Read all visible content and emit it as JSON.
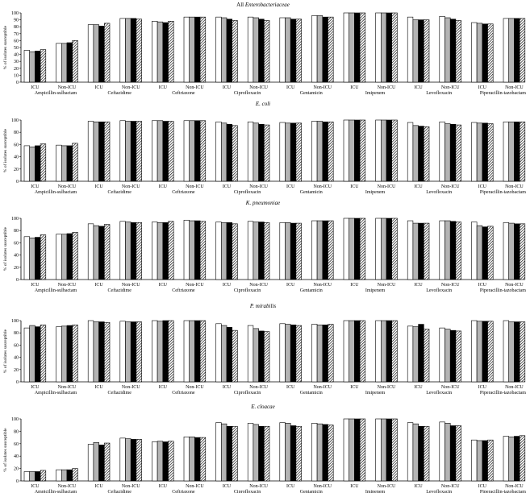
{
  "chart_data": [
    {
      "type": "bar",
      "title": "All Enterobacteriaceae",
      "title_italic_part": "Enterobacteriaceae",
      "ylabel": "% of isolates susceptible",
      "ylim": [
        0,
        100
      ],
      "yticks": [
        0,
        10,
        20,
        30,
        40,
        50,
        60,
        70,
        80,
        90,
        100
      ],
      "drugs": [
        "Ampicillin-sulbactam",
        "Ceftazidime",
        "Ceftriaxone",
        "Ciprofloxacin",
        "Gentamicin",
        "Imipenem",
        "Levofloxacin",
        "Piperacillin-tazobactam"
      ],
      "units": [
        "ICU",
        "Non-ICU"
      ],
      "series_patterns": [
        "white",
        "gray",
        "black",
        "hatched"
      ],
      "values": [
        [
          [
            46,
            44,
            45,
            47
          ],
          [
            56,
            56,
            57,
            60
          ]
        ],
        [
          [
            83,
            83,
            81,
            85
          ],
          [
            92,
            92,
            92,
            91
          ]
        ],
        [
          [
            88,
            87,
            86,
            88
          ],
          [
            94,
            94,
            94,
            94
          ]
        ],
        [
          [
            94,
            93,
            91,
            89
          ],
          [
            94,
            93,
            91,
            89
          ]
        ],
        [
          [
            93,
            93,
            91,
            91
          ],
          [
            96,
            96,
            94,
            94
          ]
        ],
        [
          [
            100,
            100,
            100,
            100
          ],
          [
            100,
            100,
            100,
            100
          ]
        ],
        [
          [
            94,
            90,
            90,
            90
          ],
          [
            95,
            93,
            91,
            89
          ]
        ],
        [
          [
            86,
            85,
            84,
            84
          ],
          [
            92,
            92,
            92,
            92
          ]
        ]
      ]
    },
    {
      "type": "bar",
      "title": "E. coli",
      "ylabel": "% of isolates susceptible",
      "ylim": [
        0,
        100
      ],
      "yticks": [
        0,
        20,
        40,
        60,
        80,
        100
      ],
      "drugs": [
        "Ampicillin-sulbactam",
        "Ceftazidime",
        "Ceftriaxone",
        "Ciprofloxacin",
        "Gentamicin",
        "Imipenem",
        "Levofloxacin",
        "Piperacillin-tazobactam"
      ],
      "units": [
        "ICU",
        "Non-ICU"
      ],
      "series_patterns": [
        "white",
        "gray",
        "black",
        "hatched"
      ],
      "values": [
        [
          [
            58,
            56,
            58,
            61
          ],
          [
            59,
            58,
            58,
            62
          ]
        ],
        [
          [
            98,
            97,
            97,
            97
          ],
          [
            99,
            98,
            98,
            98
          ]
        ],
        [
          [
            99,
            99,
            98,
            98
          ],
          [
            99,
            99,
            99,
            99
          ]
        ],
        [
          [
            97,
            95,
            93,
            91
          ],
          [
            97,
            95,
            93,
            92
          ]
        ],
        [
          [
            96,
            95,
            95,
            95
          ],
          [
            98,
            98,
            97,
            97
          ]
        ],
        [
          [
            100,
            100,
            100,
            100
          ],
          [
            100,
            100,
            100,
            100
          ]
        ],
        [
          [
            96,
            91,
            90,
            89
          ],
          [
            97,
            94,
            93,
            92
          ]
        ],
        [
          [
            96,
            95,
            95,
            94
          ],
          [
            97,
            97,
            97,
            97
          ]
        ]
      ]
    },
    {
      "type": "bar",
      "title": "K. pneumoniae",
      "ylabel": "% of isolates susceptible",
      "ylim": [
        0,
        100
      ],
      "yticks": [
        0,
        20,
        40,
        60,
        80,
        100
      ],
      "drugs": [
        "Ampicillin-sulbactam",
        "Ceftazidime",
        "Ceftriaxone",
        "Ciprofloxacin",
        "Gentamicin",
        "Imipenem",
        "Levofloxacin",
        "Piperacillin-tazobactam"
      ],
      "units": [
        "ICU",
        "Non-ICU"
      ],
      "series_patterns": [
        "white",
        "gray",
        "black",
        "hatched"
      ],
      "values": [
        [
          [
            70,
            68,
            69,
            73
          ],
          [
            74,
            74,
            75,
            77
          ]
        ],
        [
          [
            91,
            88,
            87,
            90
          ],
          [
            95,
            94,
            93,
            93
          ]
        ],
        [
          [
            94,
            93,
            93,
            95
          ],
          [
            97,
            96,
            96,
            95
          ]
        ],
        [
          [
            94,
            93,
            93,
            91
          ],
          [
            95,
            94,
            94,
            93
          ]
        ],
        [
          [
            93,
            93,
            92,
            92
          ],
          [
            96,
            96,
            96,
            96
          ]
        ],
        [
          [
            100,
            100,
            100,
            100
          ],
          [
            100,
            100,
            100,
            100
          ]
        ],
        [
          [
            96,
            92,
            92,
            92
          ],
          [
            96,
            96,
            95,
            94
          ]
        ],
        [
          [
            94,
            88,
            86,
            87
          ],
          [
            93,
            92,
            91,
            91
          ]
        ]
      ]
    },
    {
      "type": "bar",
      "title": "P. mirabilis",
      "ylabel": "% of isolates susceptible",
      "ylim": [
        0,
        100
      ],
      "yticks": [
        0,
        20,
        40,
        60,
        80,
        100
      ],
      "drugs": [
        "Ampicillin-sulbactam",
        "Ceftazidime",
        "Ceftriaxone",
        "Ciprofloxacin",
        "Gentamicin",
        "Imipenem",
        "Levofloxacin",
        "Piperacillin-tazobactam"
      ],
      "units": [
        "ICU",
        "Non-ICU"
      ],
      "series_patterns": [
        "white",
        "gray",
        "black",
        "hatched"
      ],
      "values": [
        [
          [
            88,
            92,
            90,
            93
          ],
          [
            90,
            91,
            92,
            93
          ]
        ],
        [
          [
            100,
            98,
            98,
            97
          ],
          [
            99,
            98,
            98,
            98
          ]
        ],
        [
          [
            100,
            99,
            100,
            100
          ],
          [
            100,
            100,
            100,
            100
          ]
        ],
        [
          [
            95,
            92,
            89,
            84
          ],
          [
            92,
            87,
            83,
            82
          ]
        ],
        [
          [
            95,
            94,
            93,
            92
          ],
          [
            94,
            93,
            93,
            94
          ]
        ],
        [
          [
            100,
            100,
            100,
            100
          ],
          [
            100,
            100,
            100,
            100
          ]
        ],
        [
          [
            91,
            90,
            94,
            86
          ],
          [
            88,
            86,
            84,
            83
          ]
        ],
        [
          [
            100,
            99,
            99,
            99
          ],
          [
            100,
            98,
            98,
            98
          ]
        ]
      ]
    },
    {
      "type": "bar",
      "title": "E. cloacae",
      "ylabel": "% of isolates susceptible",
      "ylim": [
        0,
        100
      ],
      "yticks": [
        0,
        20,
        40,
        60,
        80,
        100
      ],
      "drugs": [
        "Ampicillin-sulbactam",
        "Ceftazidime",
        "Ceftriaxone",
        "Ciprofloxacin",
        "Gentamicin",
        "Imipenem",
        "Levofloxacin",
        "Piperacillin-tazobactam"
      ],
      "units": [
        "ICU",
        "Non-ICU"
      ],
      "series_patterns": [
        "white",
        "gray",
        "black",
        "hatched"
      ],
      "values": [
        [
          [
            15,
            15,
            15,
            17
          ],
          [
            18,
            18,
            18,
            20
          ]
        ],
        [
          [
            59,
            62,
            58,
            61
          ],
          [
            69,
            68,
            67,
            67
          ]
        ],
        [
          [
            63,
            64,
            63,
            64
          ],
          [
            71,
            71,
            70,
            70
          ]
        ],
        [
          [
            94,
            92,
            88,
            88
          ],
          [
            93,
            91,
            88,
            88
          ]
        ],
        [
          [
            94,
            93,
            89,
            88
          ],
          [
            93,
            92,
            91,
            90
          ]
        ],
        [
          [
            100,
            100,
            100,
            100
          ],
          [
            100,
            100,
            100,
            100
          ]
        ],
        [
          [
            94,
            92,
            88,
            88
          ],
          [
            95,
            93,
            89,
            89
          ]
        ],
        [
          [
            66,
            65,
            65,
            66
          ],
          [
            72,
            71,
            72,
            73
          ]
        ]
      ]
    }
  ]
}
